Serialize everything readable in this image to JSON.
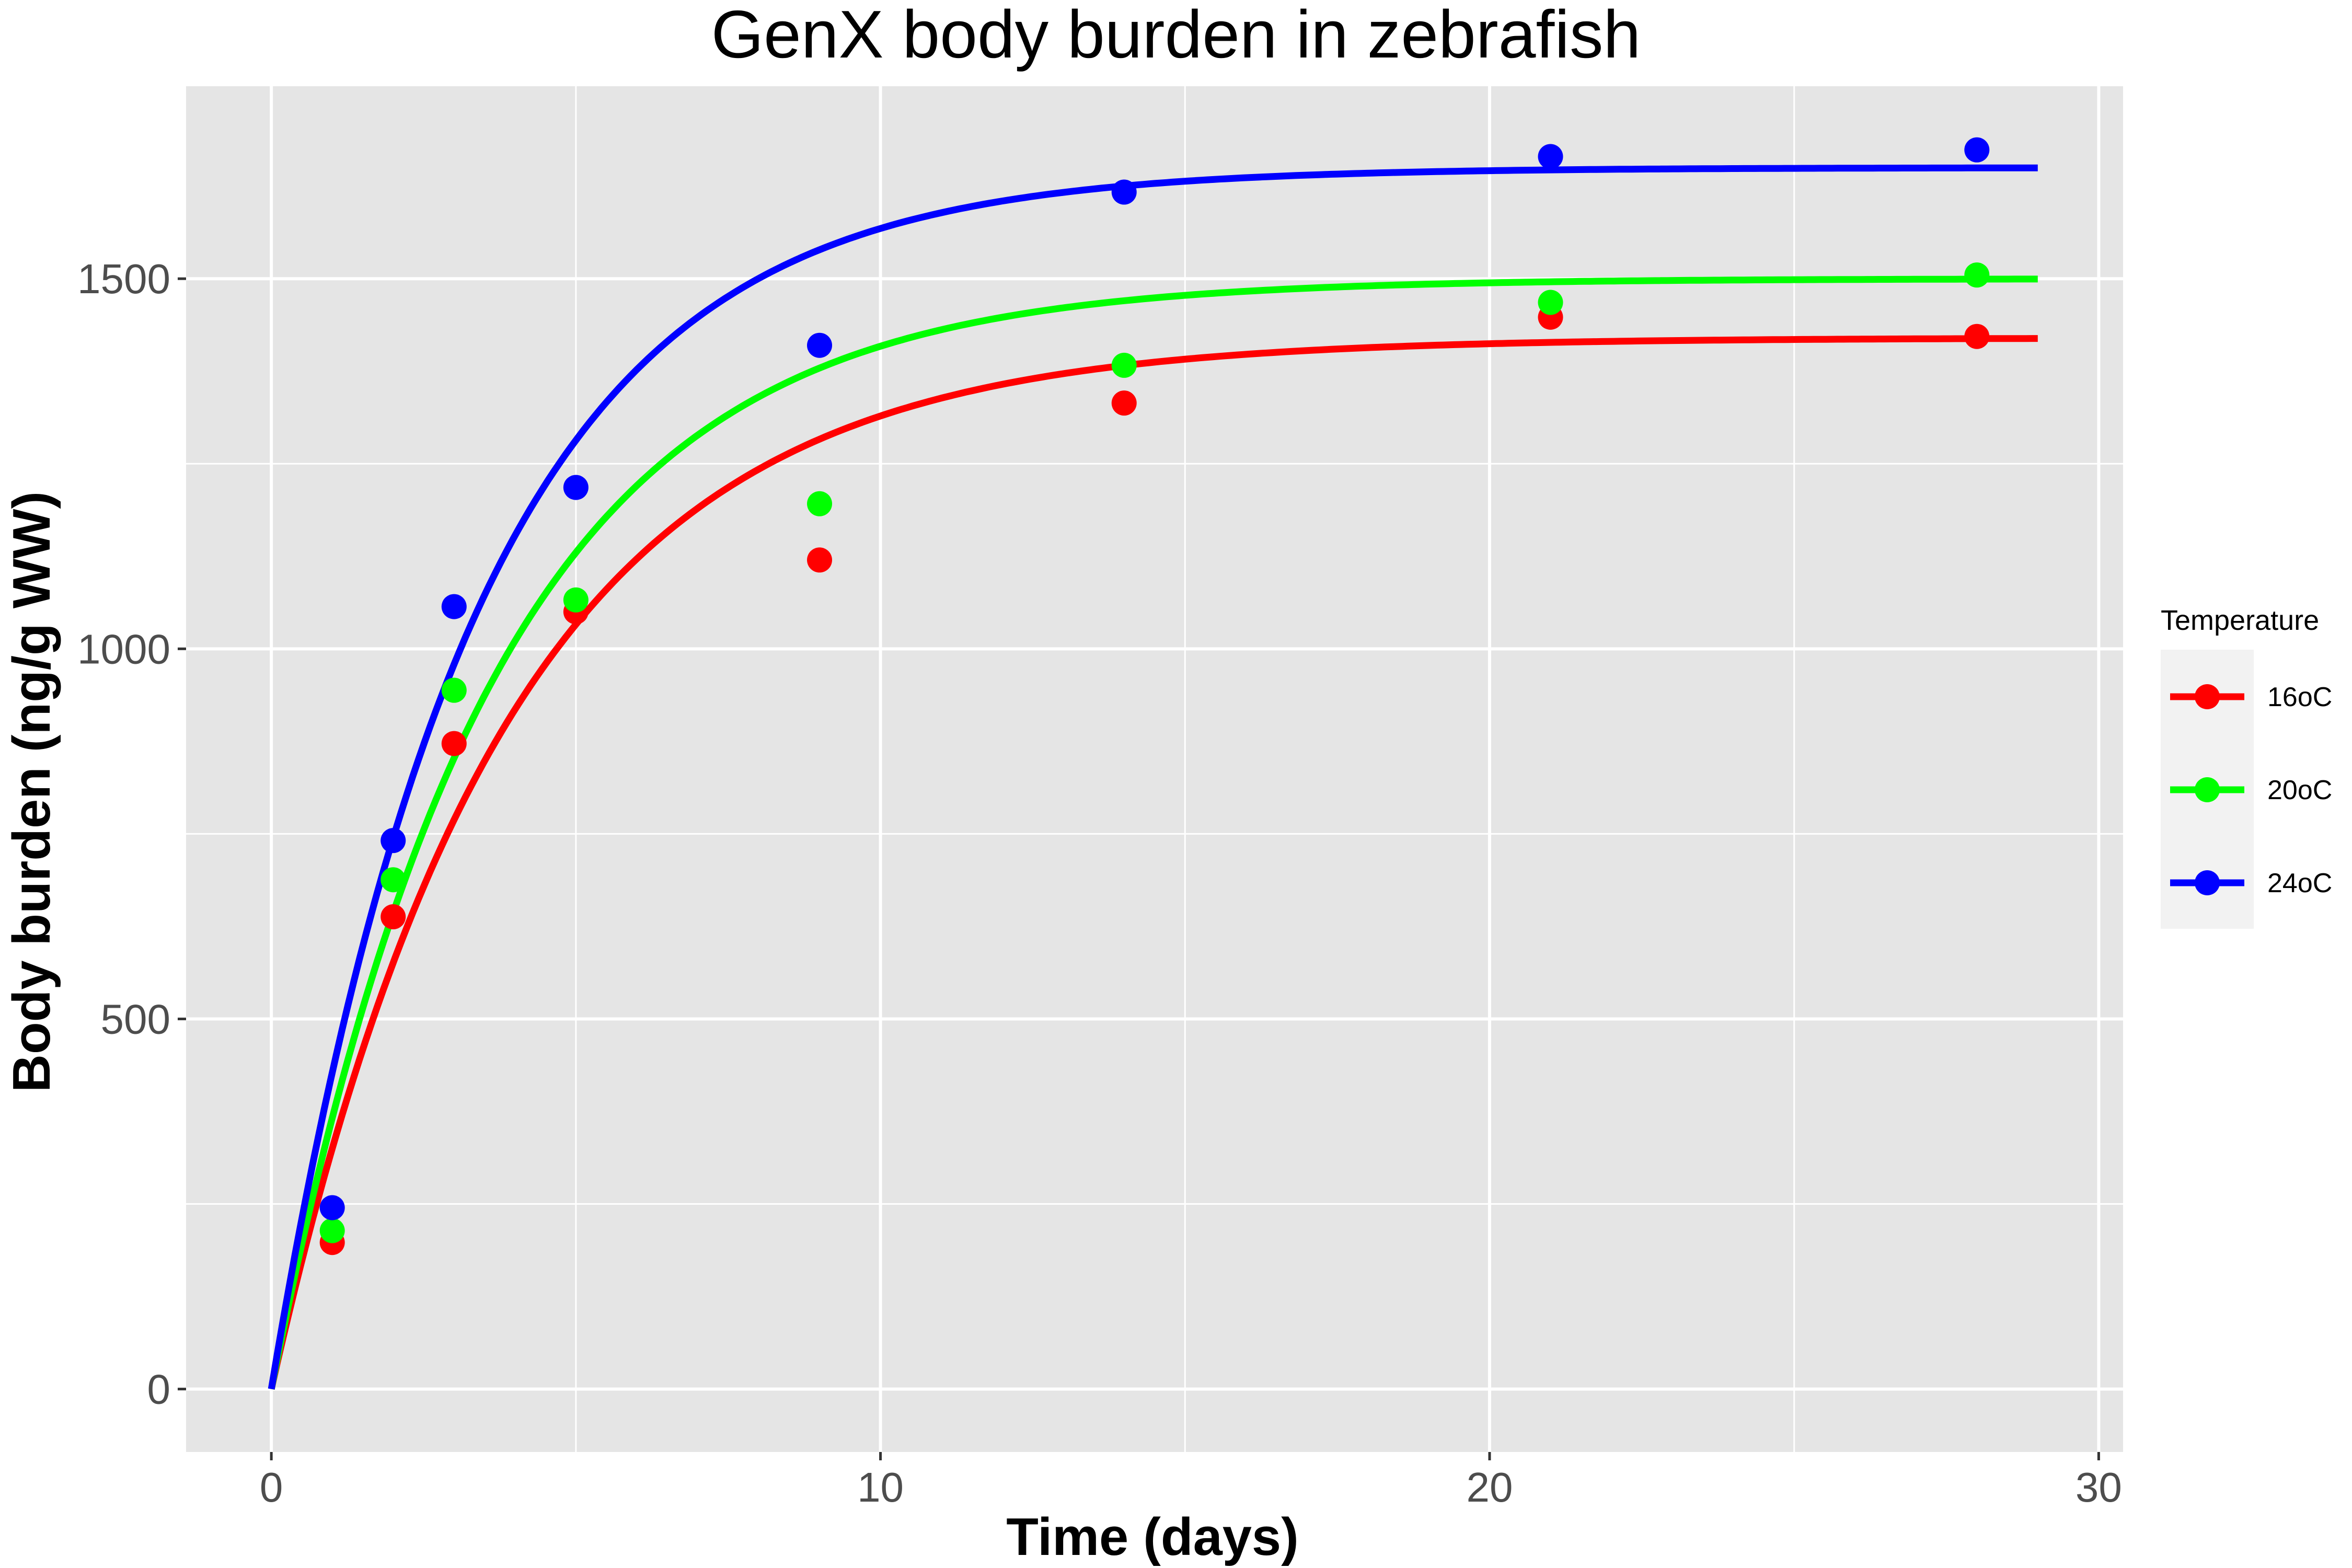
{
  "chart_data": {
    "type": "line",
    "title": "GenX body burden in zebrafish",
    "xlabel": "Time (days)",
    "ylabel": "Body burden (ng/g WW)",
    "xlim": [
      -1.4,
      30.4
    ],
    "ylim": [
      -85,
      1760
    ],
    "x_ticks": [
      0,
      10,
      20,
      30
    ],
    "x_minor_ticks": [
      5,
      15,
      25
    ],
    "y_ticks": [
      0,
      500,
      1000,
      1500
    ],
    "y_minor_ticks": [
      250,
      750,
      1250
    ],
    "grid": true,
    "panel_background": "#e5e5e5",
    "legend": {
      "title": "Temperature",
      "position": "right"
    },
    "curve_x_max": 29,
    "series": [
      {
        "name": "16oC",
        "color": "#ff0000",
        "points": [
          {
            "x": 1,
            "y": 198
          },
          {
            "x": 2,
            "y": 638
          },
          {
            "x": 3,
            "y": 872
          },
          {
            "x": 5,
            "y": 1050
          },
          {
            "x": 9,
            "y": 1120
          },
          {
            "x": 14,
            "y": 1332
          },
          {
            "x": 21,
            "y": 1448
          },
          {
            "x": 28,
            "y": 1422
          }
        ],
        "fit": {
          "model": "y = a(1 - e^(-kx))",
          "a": 1420,
          "k": 0.26
        }
      },
      {
        "name": "20oC",
        "color": "#00ff00",
        "points": [
          {
            "x": 1,
            "y": 214
          },
          {
            "x": 2,
            "y": 688
          },
          {
            "x": 3,
            "y": 944
          },
          {
            "x": 5,
            "y": 1066
          },
          {
            "x": 9,
            "y": 1196
          },
          {
            "x": 14,
            "y": 1383
          },
          {
            "x": 21,
            "y": 1468
          },
          {
            "x": 28,
            "y": 1505
          }
        ],
        "fit": {
          "model": "y = a(1 - e^(-kx))",
          "a": 1500,
          "k": 0.28
        }
      },
      {
        "name": "24oC",
        "color": "#0000ff",
        "points": [
          {
            "x": 1,
            "y": 245
          },
          {
            "x": 2,
            "y": 741
          },
          {
            "x": 3,
            "y": 1057
          },
          {
            "x": 5,
            "y": 1218
          },
          {
            "x": 9,
            "y": 1410
          },
          {
            "x": 14,
            "y": 1617
          },
          {
            "x": 21,
            "y": 1665
          },
          {
            "x": 28,
            "y": 1674
          }
        ],
        "fit": {
          "model": "y = a(1 - e^(-kx))",
          "a": 1650,
          "k": 0.3
        }
      }
    ]
  }
}
